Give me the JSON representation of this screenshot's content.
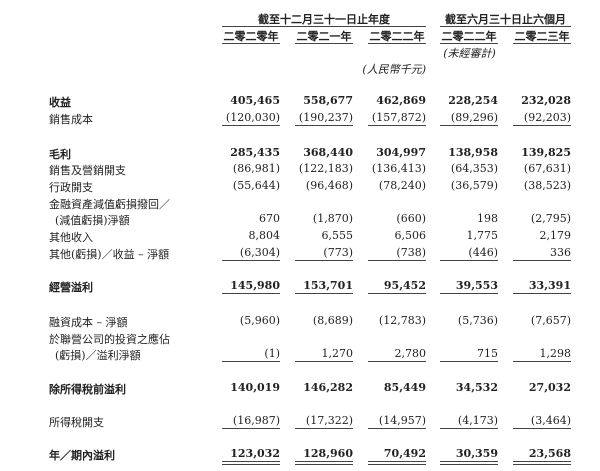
{
  "header": {
    "group_annual": "截至十二月三十一日止年度",
    "group_interim": "截至六月三十日止六個月",
    "years": [
      "二零二零年",
      "二零二一年",
      "二零二二年",
      "二零二二年",
      "二零二三年"
    ],
    "unaudited": "(未經審計)",
    "currency": "(人民幣千元)"
  },
  "rows": [
    {
      "label": "收益",
      "values": [
        "405,465",
        "558,677",
        "462,869",
        "228,254",
        "232,028"
      ],
      "bold": true
    },
    {
      "label": "銷售成本",
      "values": [
        "(120,030)",
        "(190,237)",
        "(157,872)",
        "(89,296)",
        "(92,203)"
      ]
    },
    {
      "label": "毛利",
      "values": [
        "285,435",
        "368,440",
        "304,997",
        "138,958",
        "139,825"
      ],
      "bold": true
    },
    {
      "label": "銷售及營銷開支",
      "values": [
        "(86,981)",
        "(122,183)",
        "(136,413)",
        "(64,353)",
        "(67,631)"
      ]
    },
    {
      "label": "行政開支",
      "values": [
        "(55,644)",
        "(96,468)",
        "(78,240)",
        "(36,579)",
        "(38,523)"
      ]
    },
    {
      "label": "金融資產減值虧損撥回／",
      "values": []
    },
    {
      "label": "(減值虧損)淨額",
      "values": [
        "670",
        "(1,870)",
        "(660)",
        "198",
        "(2,795)"
      ]
    },
    {
      "label": "其他收入",
      "values": [
        "8,804",
        "6,555",
        "6,506",
        "1,775",
        "2,179"
      ]
    },
    {
      "label": "其他(虧損)／收益 – 淨額",
      "values": [
        "(6,304)",
        "(773)",
        "(738)",
        "(446)",
        "336"
      ]
    },
    {
      "label": "經營溢利",
      "values": [
        "145,980",
        "153,701",
        "95,452",
        "39,553",
        "33,391"
      ],
      "bold": true
    },
    {
      "label": "融資成本 – 淨額",
      "values": [
        "(5,960)",
        "(8,689)",
        "(12,783)",
        "(5,736)",
        "(7,657)"
      ]
    },
    {
      "label": "於聯營公司的投資之應佔",
      "values": []
    },
    {
      "label": "(虧損)／溢利淨額",
      "values": [
        "(1)",
        "1,270",
        "2,780",
        "715",
        "1,298"
      ]
    },
    {
      "label": "除所得稅前溢利",
      "values": [
        "140,019",
        "146,282",
        "85,449",
        "34,532",
        "27,032"
      ],
      "bold": true
    },
    {
      "label": "所得稅開支",
      "values": [
        "(16,987)",
        "(17,322)",
        "(14,957)",
        "(4,173)",
        "(3,464)"
      ]
    },
    {
      "label": "年／期內溢利",
      "values": [
        "123,032",
        "128,960",
        "70,492",
        "30,359",
        "23,568"
      ],
      "bold": true
    }
  ]
}
